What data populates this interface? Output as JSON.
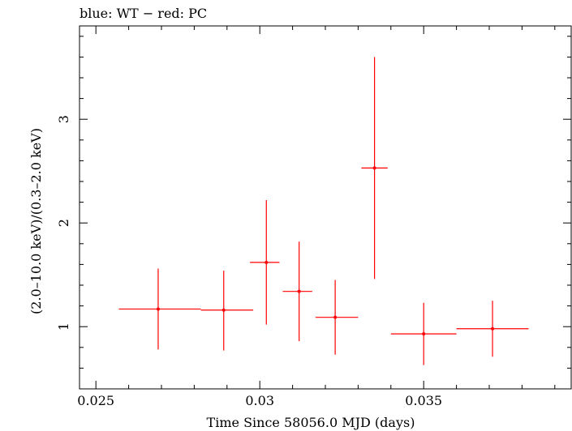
{
  "chart_data": {
    "type": "scatter",
    "title": "blue: WT − red: PC",
    "xlabel": "Time Since 58056.0 MJD (days)",
    "ylabel": "(2.0–10.0 keV)/(0.3–2.0 keV)",
    "xlim": [
      0.0245,
      0.0395
    ],
    "ylim": [
      0.4,
      3.9
    ],
    "x_ticks": [
      {
        "value": 0.025,
        "label": "0.025"
      },
      {
        "value": 0.03,
        "label": "0.03"
      },
      {
        "value": 0.035,
        "label": "0.035"
      }
    ],
    "y_ticks": [
      {
        "value": 1,
        "label": "1"
      },
      {
        "value": 2,
        "label": "2"
      },
      {
        "value": 3,
        "label": "3"
      }
    ],
    "grid": false,
    "series": [
      {
        "name": "PC",
        "color": "#ff0000",
        "points": [
          {
            "x": 0.0269,
            "xerr_low": 0.0257,
            "xerr_high": 0.0282,
            "y": 1.17,
            "y_low": 0.78,
            "y_high": 1.56
          },
          {
            "x": 0.0289,
            "xerr_low": 0.0282,
            "xerr_high": 0.0298,
            "y": 1.16,
            "y_low": 0.77,
            "y_high": 1.54
          },
          {
            "x": 0.0302,
            "xerr_low": 0.0297,
            "xerr_high": 0.0306,
            "y": 1.62,
            "y_low": 1.02,
            "y_high": 2.22
          },
          {
            "x": 0.0312,
            "xerr_low": 0.0307,
            "xerr_high": 0.0316,
            "y": 1.34,
            "y_low": 0.86,
            "y_high": 1.82
          },
          {
            "x": 0.0323,
            "xerr_low": 0.0317,
            "xerr_high": 0.033,
            "y": 1.09,
            "y_low": 0.73,
            "y_high": 1.45
          },
          {
            "x": 0.0335,
            "xerr_low": 0.0331,
            "xerr_high": 0.0339,
            "y": 2.53,
            "y_low": 1.46,
            "y_high": 3.6
          },
          {
            "x": 0.035,
            "xerr_low": 0.034,
            "xerr_high": 0.036,
            "y": 0.93,
            "y_low": 0.63,
            "y_high": 1.23
          },
          {
            "x": 0.0371,
            "xerr_low": 0.036,
            "xerr_high": 0.0382,
            "y": 0.98,
            "y_low": 0.71,
            "y_high": 1.25
          }
        ]
      }
    ]
  }
}
